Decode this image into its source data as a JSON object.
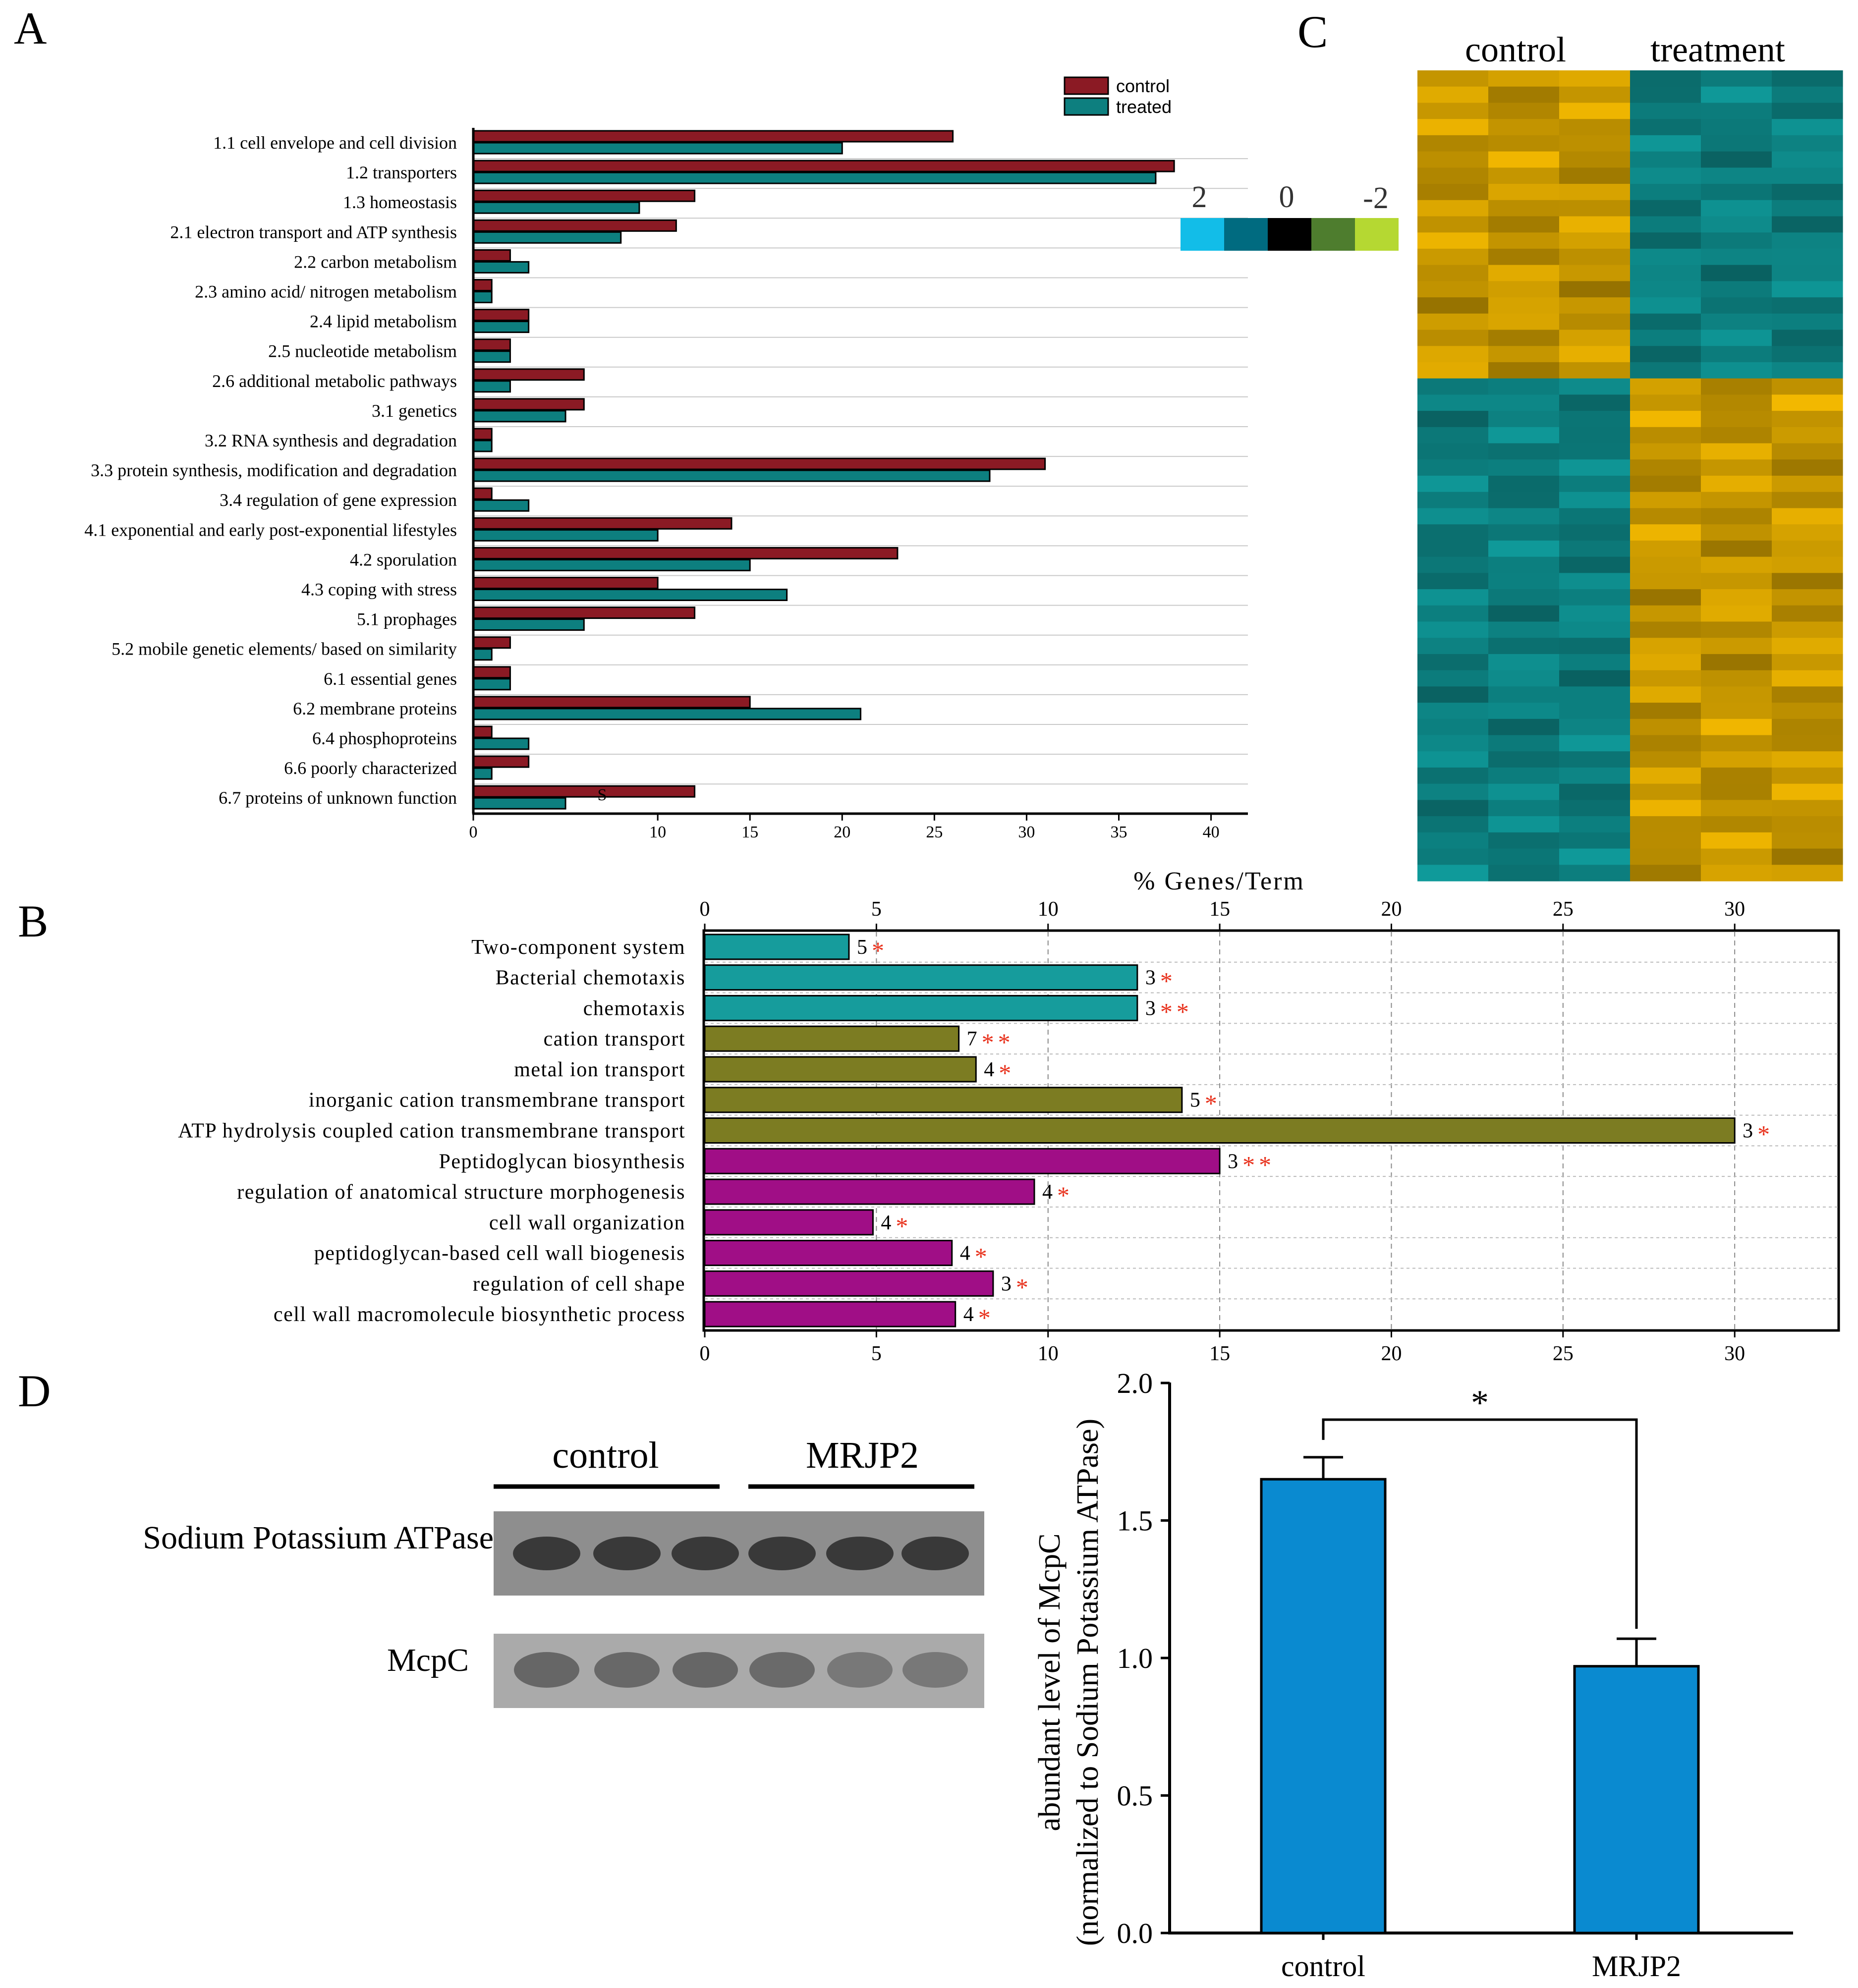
{
  "panel_labels": [
    "A",
    "B",
    "C",
    "D"
  ],
  "colors": {
    "control": "#8b1a24",
    "treated": "#0d7f7f",
    "teal": "#169c9c",
    "olive": "#7c7c22",
    "magenta": "#a00e86",
    "star": "#e8311c",
    "bar_blue": "#0a8ad0",
    "heat_high": "#f2b800",
    "heat_low": "#0f9a9a"
  },
  "chart_data": [
    {
      "id": "A",
      "type": "bar",
      "orientation": "horizontal",
      "categories": [
        "1.1 cell envelope and cell division",
        "1.2 transporters",
        "1.3 homeostasis",
        "2.1 electron transport and ATP synthesis",
        "2.2 carbon metabolism",
        "2.3 amino acid/ nitrogen metabolism",
        "2.4 lipid metabolism",
        "2.5 nucleotide metabolism",
        "2.6 additional metabolic pathways",
        "3.1 genetics",
        "3.2 RNA synthesis and degradation",
        "3.3  protein synthesis, modification and degradation",
        "3.4 regulation of gene expression",
        "4.1 exponential and early post-exponential lifestyles",
        "4.2 sporulation",
        "4.3 coping with stress",
        "5.1 prophages",
        "5.2 mobile genetic elements/ based on similarity",
        "6.1 essential genes",
        "6.2 membrane proteins",
        "6.4 phosphoproteins",
        "6.6 poorly characterized",
        "6.7 proteins of unknown function"
      ],
      "series": [
        {
          "name": "control",
          "values": [
            26,
            38,
            12,
            11,
            2,
            1,
            3,
            2,
            6,
            6,
            1,
            31,
            1,
            14,
            23,
            10,
            12,
            2,
            2,
            15,
            1,
            3,
            12
          ]
        },
        {
          "name": "treated",
          "values": [
            20,
            37,
            9,
            8,
            3,
            1,
            3,
            2,
            2,
            5,
            1,
            28,
            3,
            10,
            15,
            17,
            6,
            1,
            2,
            21,
            3,
            1,
            5
          ]
        }
      ],
      "xticks": [
        "0",
        "10",
        "15",
        "20",
        "25",
        "30",
        "35",
        "40"
      ],
      "xtick_values": [
        0,
        10,
        15,
        20,
        25,
        30,
        35,
        40
      ],
      "xlim": [
        0,
        42
      ],
      "legend": [
        "control",
        "treated"
      ],
      "legend_position": "top-right",
      "annotation": "S"
    },
    {
      "id": "B",
      "type": "bar",
      "orientation": "horizontal",
      "xlabel": "% Genes/Term",
      "xlim": [
        0,
        33
      ],
      "xticks": [
        "0",
        "5",
        "10",
        "15",
        "20",
        "25",
        "30"
      ],
      "xtick_values": [
        0,
        5,
        10,
        15,
        20,
        25,
        30
      ],
      "grid": true,
      "categories": [
        "Two-component system",
        "Bacterial chemotaxis",
        "chemotaxis",
        "cation transport",
        "metal ion transport",
        "inorganic cation transmembrane transport",
        "ATP hydrolysis coupled cation transmembrane transport",
        "Peptidoglycan biosynthesis",
        "regulation of anatomical structure morphogenesis",
        "cell wall organization",
        "peptidoglycan-based cell wall biogenesis",
        "regulation of cell shape",
        "cell wall macromolecule biosynthetic process"
      ],
      "values": [
        4.2,
        12.6,
        12.6,
        7.4,
        7.9,
        13.9,
        30,
        15,
        9.6,
        4.9,
        7.2,
        8.4,
        7.3
      ],
      "groups": [
        "teal",
        "teal",
        "teal",
        "olive",
        "olive",
        "olive",
        "olive",
        "magenta",
        "magenta",
        "magenta",
        "magenta",
        "magenta",
        "magenta"
      ],
      "counts": [
        "5",
        "3",
        "3",
        "7",
        "4",
        "5",
        "3",
        "3",
        "4",
        "4",
        "4",
        "3",
        "4"
      ],
      "significance": [
        "*",
        "*",
        "**",
        "**",
        "*",
        "*",
        "*",
        "**",
        "*",
        "*",
        "*",
        "*",
        "*"
      ]
    },
    {
      "id": "C",
      "type": "heatmap",
      "columns_groups": [
        "control",
        "treatment"
      ],
      "n_columns": 6,
      "scale_labels": [
        "2",
        "0",
        "-2"
      ],
      "scale_colors": [
        "#12bde8",
        "#006b80",
        "#000000",
        "#4e7d2e",
        "#b5d832"
      ]
    },
    {
      "id": "D",
      "type": "bar",
      "categories": [
        "control",
        "MRJP2"
      ],
      "values": [
        1.65,
        0.97
      ],
      "errors": [
        0.08,
        0.1
      ],
      "ylim": [
        0,
        2.0
      ],
      "yticks": [
        "0.0",
        "0.5",
        "1.0",
        "1.5",
        "2.0"
      ],
      "ytick_values": [
        0,
        0.5,
        1.0,
        1.5,
        2.0
      ],
      "ylabel_line1": "abundant level of McpC",
      "ylabel_line2": "(normalized to Sodium Potassium ATPase)",
      "significance": "*"
    }
  ],
  "blot": {
    "group_labels": [
      "control",
      "MRJP2"
    ],
    "rows": [
      "Sodium Potassium ATPase",
      "McpC"
    ]
  }
}
